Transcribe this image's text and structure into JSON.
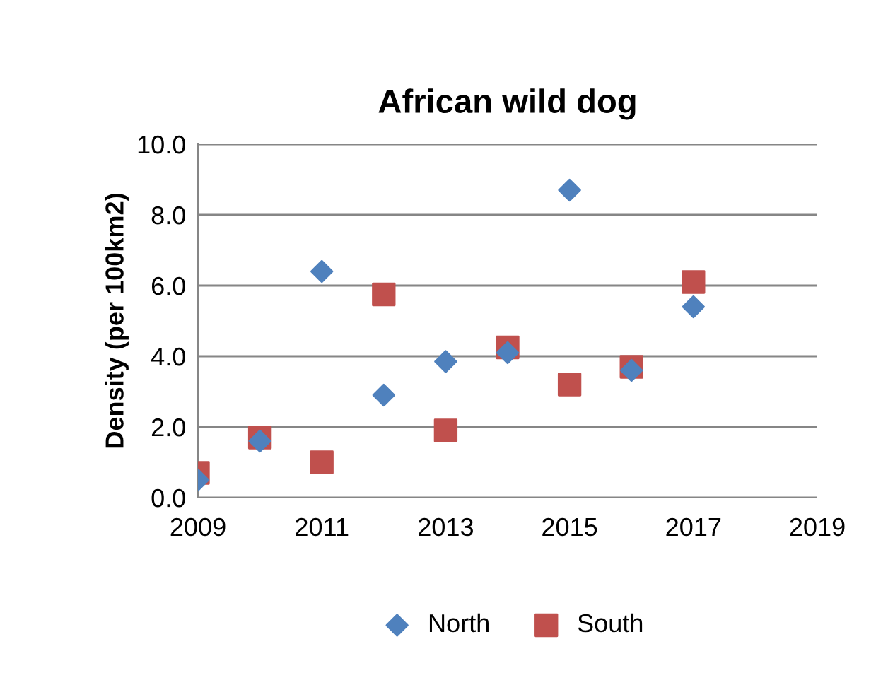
{
  "chart_data": {
    "type": "scatter",
    "title": "African wild dog",
    "ylabel": "Density (per 100km2)",
    "xlim": [
      2009,
      2019
    ],
    "xticks": [
      2009,
      2011,
      2013,
      2015,
      2017,
      2019
    ],
    "ylim": [
      0,
      10
    ],
    "yticks": [
      {
        "value": 0,
        "label": "0.0"
      },
      {
        "value": 2,
        "label": "2.0"
      },
      {
        "value": 4,
        "label": "4.0"
      },
      {
        "value": 6,
        "label": "6.0"
      },
      {
        "value": 8,
        "label": "8.0"
      },
      {
        "value": 10,
        "label": "10.0"
      }
    ],
    "grid": "y",
    "legend": "bottom",
    "series": [
      {
        "name": "North",
        "color": "#4f81bd",
        "marker": "diamond",
        "x": [
          2009,
          2010,
          2011,
          2012,
          2013,
          2014,
          2015,
          2016,
          2017
        ],
        "values": [
          0.5,
          1.6,
          6.4,
          2.9,
          3.85,
          4.1,
          8.7,
          3.6,
          5.4
        ]
      },
      {
        "name": "South",
        "color": "#c0504d",
        "marker": "square",
        "x": [
          2009,
          2010,
          2011,
          2012,
          2013,
          2014,
          2015,
          2016,
          2017
        ],
        "values": [
          0.7,
          1.7,
          1.0,
          5.75,
          1.9,
          4.25,
          3.2,
          3.7,
          6.1
        ]
      }
    ]
  }
}
